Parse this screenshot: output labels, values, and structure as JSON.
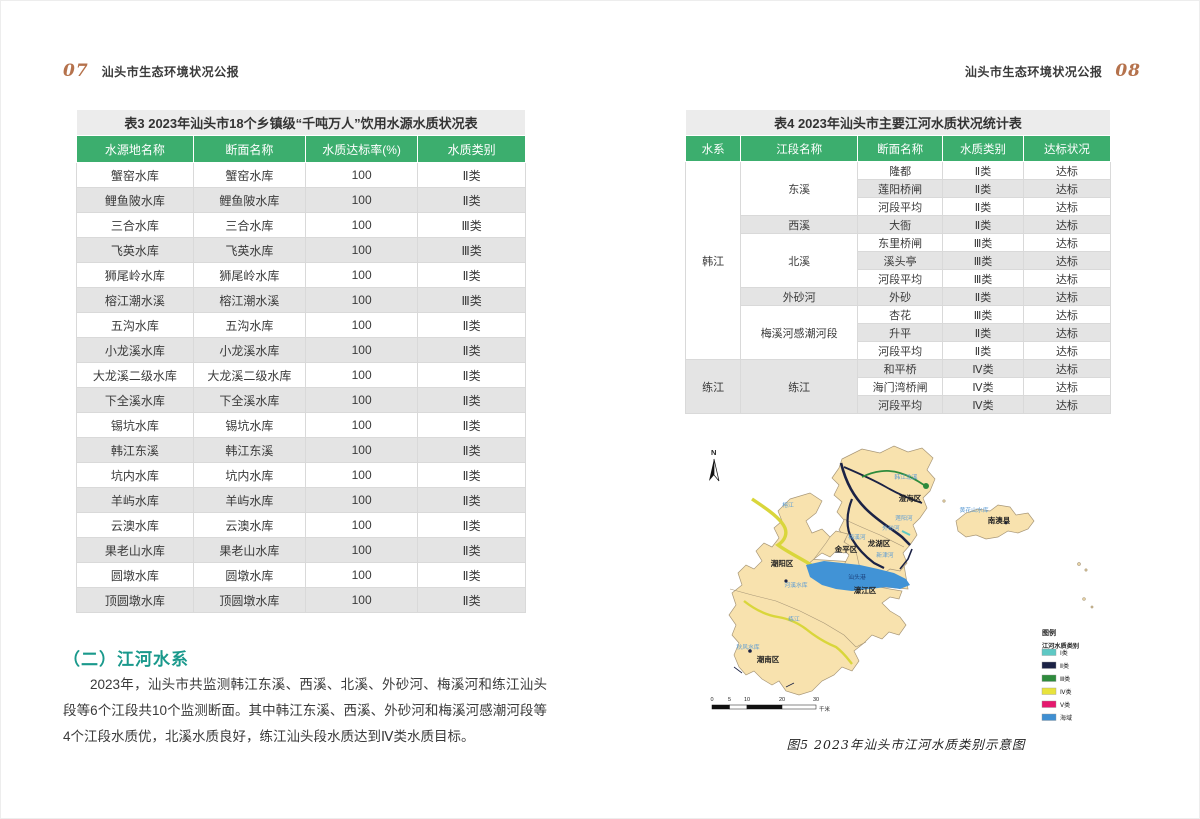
{
  "left_page": {
    "page_number": "07",
    "header_title": "汕头市生态环境状况公报",
    "table3": {
      "title": "表3  2023年汕头市18个乡镇级“千吨万人”饮用水源水质状况表",
      "columns": [
        "水源地名称",
        "断面名称",
        "水质达标率(%)",
        "水质类别"
      ],
      "rows": [
        [
          "蟹窑水库",
          "蟹窑水库",
          "100",
          "Ⅱ类"
        ],
        [
          "鲤鱼陂水库",
          "鲤鱼陂水库",
          "100",
          "Ⅱ类"
        ],
        [
          "三合水库",
          "三合水库",
          "100",
          "Ⅲ类"
        ],
        [
          "飞英水库",
          "飞英水库",
          "100",
          "Ⅲ类"
        ],
        [
          "狮尾岭水库",
          "狮尾岭水库",
          "100",
          "Ⅱ类"
        ],
        [
          "榕江潮水溪",
          "榕江潮水溪",
          "100",
          "Ⅲ类"
        ],
        [
          "五沟水库",
          "五沟水库",
          "100",
          "Ⅱ类"
        ],
        [
          "小龙溪水库",
          "小龙溪水库",
          "100",
          "Ⅱ类"
        ],
        [
          "大龙溪二级水库",
          "大龙溪二级水库",
          "100",
          "Ⅱ类"
        ],
        [
          "下全溪水库",
          "下全溪水库",
          "100",
          "Ⅱ类"
        ],
        [
          "锡坑水库",
          "锡坑水库",
          "100",
          "Ⅱ类"
        ],
        [
          "韩江东溪",
          "韩江东溪",
          "100",
          "Ⅱ类"
        ],
        [
          "坑内水库",
          "坑内水库",
          "100",
          "Ⅱ类"
        ],
        [
          "羊屿水库",
          "羊屿水库",
          "100",
          "Ⅱ类"
        ],
        [
          "云澳水库",
          "云澳水库",
          "100",
          "Ⅱ类"
        ],
        [
          "果老山水库",
          "果老山水库",
          "100",
          "Ⅱ类"
        ],
        [
          "圆墩水库",
          "圆墩水库",
          "100",
          "Ⅱ类"
        ],
        [
          "顶圆墩水库",
          "顶圆墩水库",
          "100",
          "Ⅱ类"
        ]
      ]
    },
    "section": {
      "heading": "（二）江河水系",
      "paragraph": "2023年，汕头市共监测韩江东溪、西溪、北溪、外砂河、梅溪河和练江汕头段等6个江段共10个监测断面。其中韩江东溪、西溪、外砂河和梅溪河感潮河段等4个江段水质优，北溪水质良好，练江汕头段水质达到Ⅳ类水质目标。"
    }
  },
  "right_page": {
    "page_number": "08",
    "header_title": "汕头市生态环境状况公报",
    "table4": {
      "title": "表4  2023年汕头市主要江河水质状况统计表",
      "columns": [
        "水系",
        "江段名称",
        "断面名称",
        "水质类别",
        "达标状况"
      ],
      "groups": [
        {
          "system": "韩江",
          "segments": [
            {
              "name": "东溪",
              "rows": [
                [
                  "隆都",
                  "Ⅱ类",
                  "达标"
                ],
                [
                  "莲阳桥闸",
                  "Ⅱ类",
                  "达标"
                ],
                [
                  "河段平均",
                  "Ⅱ类",
                  "达标"
                ]
              ]
            },
            {
              "name": "西溪",
              "rows": [
                [
                  "大衙",
                  "Ⅱ类",
                  "达标"
                ]
              ]
            },
            {
              "name": "北溪",
              "rows": [
                [
                  "东里桥闸",
                  "Ⅲ类",
                  "达标"
                ],
                [
                  "溪头亭",
                  "Ⅲ类",
                  "达标"
                ],
                [
                  "河段平均",
                  "Ⅲ类",
                  "达标"
                ]
              ]
            },
            {
              "name": "外砂河",
              "rows": [
                [
                  "外砂",
                  "Ⅱ类",
                  "达标"
                ]
              ]
            },
            {
              "name": "梅溪河感潮河段",
              "rows": [
                [
                  "杏花",
                  "Ⅲ类",
                  "达标"
                ],
                [
                  "升平",
                  "Ⅱ类",
                  "达标"
                ],
                [
                  "河段平均",
                  "Ⅱ类",
                  "达标"
                ]
              ]
            }
          ]
        },
        {
          "system": "练江",
          "segments": [
            {
              "name": "练江",
              "rows": [
                [
                  "和平桥",
                  "Ⅳ类",
                  "达标"
                ],
                [
                  "海门湾桥闸",
                  "Ⅳ类",
                  "达标"
                ],
                [
                  "河段平均",
                  "Ⅳ类",
                  "达标"
                ]
              ]
            }
          ]
        }
      ]
    },
    "map": {
      "north_label": "N",
      "districts": [
        "澄海区",
        "南澳县",
        "龙湖区",
        "金平区",
        "潮阳区",
        "濠江区",
        "潮南区"
      ],
      "water_labels": [
        "韩江北溪",
        "莲阳河",
        "外砂河",
        "黄花山水库",
        "梅溪河",
        "新津河",
        "汕头港",
        "榕江",
        "河溪水库",
        "练江",
        "秋风水库"
      ],
      "legend": {
        "title": "图例",
        "subtitle": "江河水质类别",
        "items": [
          {
            "label": "Ⅰ类",
            "color": "#5ec8c4"
          },
          {
            "label": "Ⅱ类",
            "color": "#1b2245"
          },
          {
            "label": "Ⅲ类",
            "color": "#2e8b3d"
          },
          {
            "label": "Ⅳ类",
            "color": "#e8e33c"
          },
          {
            "label": "Ⅴ类",
            "color": "#e5186e"
          },
          {
            "label": "海域",
            "color": "#3f8fd2"
          }
        ]
      },
      "scale": {
        "ticks": [
          "0",
          "5",
          "10",
          "20",
          "30"
        ],
        "unit": "千米"
      },
      "caption": "图5  2023年汕头市江河水质类别示意图"
    }
  },
  "colors": {
    "table_header_green": "#3cae6e",
    "page_number_accent": "#b5724c",
    "section_heading_teal": "#1a998c"
  }
}
